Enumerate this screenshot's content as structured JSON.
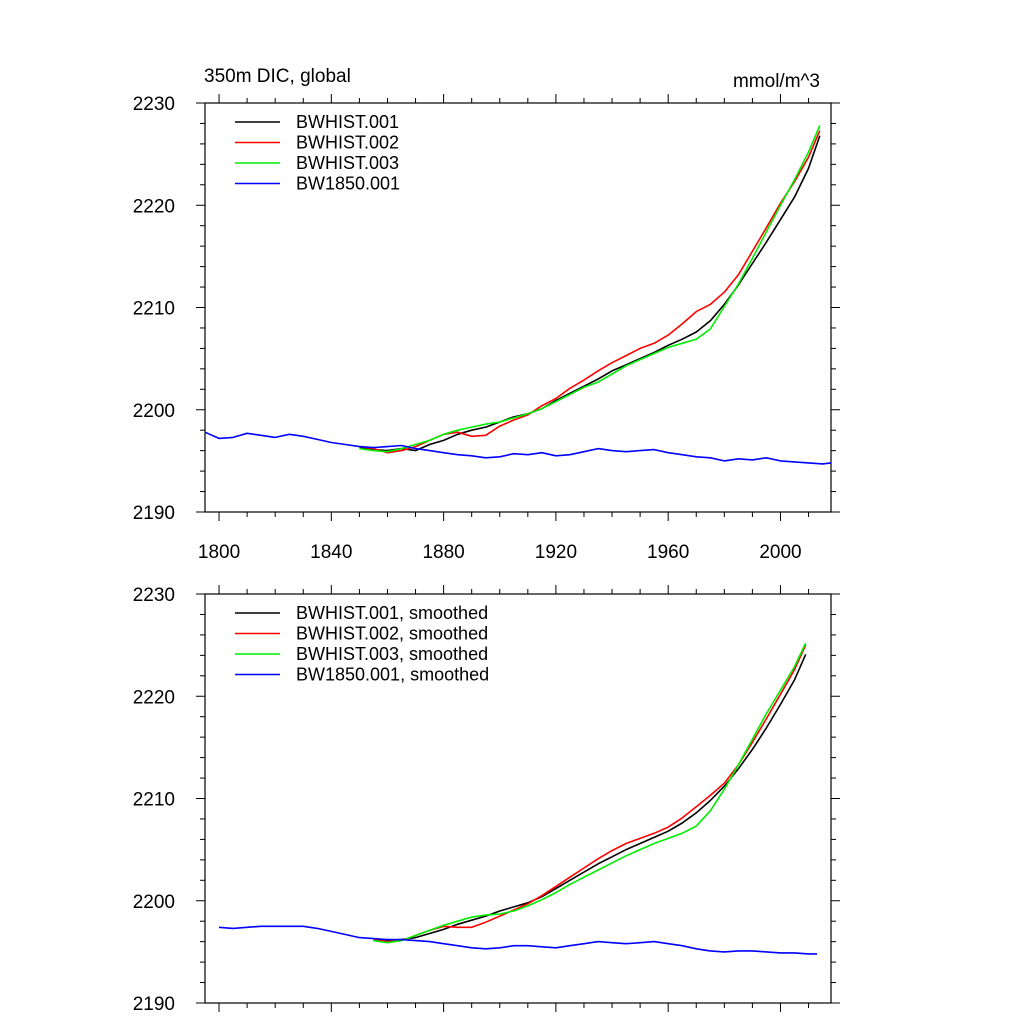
{
  "chart_data": [
    {
      "type": "line",
      "title": "350m DIC, global",
      "units": "mmol/m^3",
      "xlim": [
        1795,
        2018
      ],
      "ylim": [
        2190,
        2230
      ],
      "x_ticks": [
        1800,
        1840,
        1880,
        1920,
        1960,
        2000
      ],
      "y_ticks": [
        2190,
        2200,
        2210,
        2220,
        2230
      ],
      "show_x_tick_labels": true,
      "grid": false,
      "legend": "top-left",
      "series": [
        {
          "name": "BWHIST.001",
          "color": "#000000",
          "x": [
            1850,
            1855,
            1860,
            1865,
            1870,
            1875,
            1880,
            1885,
            1890,
            1895,
            1900,
            1905,
            1910,
            1915,
            1920,
            1925,
            1930,
            1935,
            1940,
            1945,
            1950,
            1955,
            1960,
            1965,
            1970,
            1975,
            1980,
            1985,
            1990,
            1995,
            2000,
            2005,
            2010,
            2014
          ],
          "y": [
            2196.3,
            2196.1,
            2196.0,
            2196.2,
            2196.0,
            2196.6,
            2197.0,
            2197.6,
            2198.0,
            2198.3,
            2198.8,
            2199.3,
            2199.6,
            2200.1,
            2200.9,
            2201.6,
            2202.3,
            2203.0,
            2203.8,
            2204.4,
            2205.0,
            2205.6,
            2206.3,
            2206.9,
            2207.6,
            2208.7,
            2210.3,
            2212.2,
            2214.3,
            2216.4,
            2218.6,
            2220.8,
            2223.6,
            2226.8
          ]
        },
        {
          "name": "BWHIST.002",
          "color": "#ff0000",
          "x": [
            1850,
            1855,
            1860,
            1865,
            1870,
            1875,
            1880,
            1885,
            1890,
            1895,
            1900,
            1905,
            1910,
            1915,
            1920,
            1925,
            1930,
            1935,
            1940,
            1945,
            1950,
            1955,
            1960,
            1965,
            1970,
            1975,
            1980,
            1985,
            1990,
            1995,
            2000,
            2005,
            2010,
            2014
          ],
          "y": [
            2196.4,
            2196.2,
            2195.8,
            2196.0,
            2196.4,
            2197.0,
            2197.6,
            2197.8,
            2197.4,
            2197.5,
            2198.4,
            2199.0,
            2199.5,
            2200.4,
            2201.1,
            2202.1,
            2202.9,
            2203.8,
            2204.6,
            2205.3,
            2206.0,
            2206.5,
            2207.3,
            2208.4,
            2209.6,
            2210.3,
            2211.5,
            2213.2,
            2215.5,
            2217.8,
            2220.2,
            2222.3,
            2224.7,
            2227.3
          ]
        },
        {
          "name": "BWHIST.003",
          "color": "#00ee00",
          "x": [
            1850,
            1855,
            1860,
            1865,
            1870,
            1875,
            1880,
            1885,
            1890,
            1895,
            1900,
            1905,
            1910,
            1915,
            1920,
            1925,
            1930,
            1935,
            1940,
            1945,
            1950,
            1955,
            1960,
            1965,
            1970,
            1975,
            1980,
            1985,
            1990,
            1995,
            2000,
            2005,
            2010,
            2014
          ],
          "y": [
            2196.2,
            2196.0,
            2195.9,
            2196.2,
            2196.6,
            2197.0,
            2197.6,
            2198.0,
            2198.3,
            2198.6,
            2198.8,
            2199.2,
            2199.6,
            2200.1,
            2200.8,
            2201.5,
            2202.2,
            2202.7,
            2203.5,
            2204.3,
            2204.9,
            2205.5,
            2206.1,
            2206.5,
            2206.9,
            2207.9,
            2210.1,
            2212.3,
            2214.8,
            2217.4,
            2220.0,
            2222.5,
            2225.2,
            2227.8
          ]
        },
        {
          "name": "BW1850.001",
          "color": "#0000ff",
          "x": [
            1795,
            1800,
            1805,
            1810,
            1815,
            1820,
            1825,
            1830,
            1835,
            1840,
            1845,
            1850,
            1855,
            1860,
            1865,
            1870,
            1875,
            1880,
            1885,
            1890,
            1895,
            1900,
            1905,
            1910,
            1915,
            1920,
            1925,
            1930,
            1935,
            1940,
            1945,
            1950,
            1955,
            1960,
            1965,
            1970,
            1975,
            1980,
            1985,
            1990,
            1995,
            2000,
            2005,
            2010,
            2015,
            2018
          ],
          "y": [
            2197.8,
            2197.2,
            2197.3,
            2197.7,
            2197.5,
            2197.3,
            2197.6,
            2197.4,
            2197.1,
            2196.8,
            2196.6,
            2196.4,
            2196.3,
            2196.4,
            2196.5,
            2196.2,
            2196.0,
            2195.8,
            2195.6,
            2195.5,
            2195.3,
            2195.4,
            2195.7,
            2195.6,
            2195.8,
            2195.5,
            2195.6,
            2195.9,
            2196.2,
            2196.0,
            2195.9,
            2196.0,
            2196.1,
            2195.8,
            2195.6,
            2195.4,
            2195.3,
            2195.0,
            2195.2,
            2195.1,
            2195.3,
            2195.0,
            2194.9,
            2194.8,
            2194.7,
            2194.8
          ]
        }
      ]
    },
    {
      "type": "line",
      "title": "",
      "units": "",
      "xlim": [
        1795,
        2018
      ],
      "ylim": [
        2190,
        2230
      ],
      "x_ticks": [
        1800,
        1840,
        1880,
        1920,
        1960,
        2000
      ],
      "y_ticks": [
        2190,
        2200,
        2210,
        2220,
        2230
      ],
      "show_x_tick_labels": false,
      "grid": false,
      "legend": "top-left",
      "series": [
        {
          "name": "BWHIST.001, smoothed",
          "color": "#000000",
          "x": [
            1855,
            1860,
            1865,
            1870,
            1875,
            1880,
            1885,
            1890,
            1895,
            1900,
            1905,
            1910,
            1915,
            1920,
            1925,
            1930,
            1935,
            1940,
            1945,
            1950,
            1955,
            1960,
            1965,
            1970,
            1975,
            1980,
            1985,
            1990,
            1995,
            2000,
            2005,
            2009
          ],
          "y": [
            2196.2,
            2196.1,
            2196.2,
            2196.4,
            2196.8,
            2197.2,
            2197.7,
            2198.1,
            2198.5,
            2199.0,
            2199.4,
            2199.8,
            2200.4,
            2201.2,
            2202.0,
            2202.8,
            2203.6,
            2204.3,
            2205.0,
            2205.6,
            2206.2,
            2206.8,
            2207.6,
            2208.6,
            2209.8,
            2211.2,
            2212.9,
            2214.8,
            2216.9,
            2219.2,
            2221.6,
            2224.1
          ]
        },
        {
          "name": "BWHIST.002, smoothed",
          "color": "#ff0000",
          "x": [
            1855,
            1860,
            1865,
            1870,
            1875,
            1880,
            1885,
            1890,
            1895,
            1900,
            1905,
            1910,
            1915,
            1920,
            1925,
            1930,
            1935,
            1940,
            1945,
            1950,
            1955,
            1960,
            1965,
            1970,
            1975,
            1980,
            1985,
            1990,
            1995,
            2000,
            2005,
            2009
          ],
          "y": [
            2196.2,
            2196.0,
            2196.1,
            2196.6,
            2197.1,
            2197.5,
            2197.4,
            2197.4,
            2197.9,
            2198.5,
            2199.1,
            2199.7,
            2200.5,
            2201.4,
            2202.3,
            2203.2,
            2204.1,
            2204.9,
            2205.6,
            2206.1,
            2206.6,
            2207.2,
            2208.1,
            2209.2,
            2210.3,
            2211.5,
            2213.3,
            2215.5,
            2217.8,
            2220.2,
            2222.6,
            2225.0
          ]
        },
        {
          "name": "BWHIST.003, smoothed",
          "color": "#00ee00",
          "x": [
            1855,
            1860,
            1865,
            1870,
            1875,
            1880,
            1885,
            1890,
            1895,
            1900,
            1905,
            1910,
            1915,
            1920,
            1925,
            1930,
            1935,
            1940,
            1945,
            1950,
            1955,
            1960,
            1965,
            1970,
            1975,
            1980,
            1985,
            1990,
            1995,
            2000,
            2005,
            2009
          ],
          "y": [
            2196.1,
            2195.9,
            2196.1,
            2196.6,
            2197.1,
            2197.6,
            2198.0,
            2198.4,
            2198.6,
            2198.7,
            2199.0,
            2199.5,
            2200.1,
            2200.8,
            2201.6,
            2202.3,
            2203.0,
            2203.7,
            2204.4,
            2205.0,
            2205.6,
            2206.1,
            2206.6,
            2207.3,
            2208.8,
            2210.9,
            2213.3,
            2215.8,
            2218.3,
            2220.6,
            2222.9,
            2225.2
          ]
        },
        {
          "name": "BW1850.001, smoothed",
          "color": "#0000ff",
          "x": [
            1800,
            1805,
            1810,
            1815,
            1820,
            1825,
            1830,
            1835,
            1840,
            1845,
            1850,
            1855,
            1860,
            1865,
            1870,
            1875,
            1880,
            1885,
            1890,
            1895,
            1900,
            1905,
            1910,
            1915,
            1920,
            1925,
            1930,
            1935,
            1940,
            1945,
            1950,
            1955,
            1960,
            1965,
            1970,
            1975,
            1980,
            1985,
            1990,
            1995,
            2000,
            2005,
            2010,
            2013
          ],
          "y": [
            2197.4,
            2197.3,
            2197.4,
            2197.5,
            2197.5,
            2197.5,
            2197.5,
            2197.3,
            2197.0,
            2196.7,
            2196.4,
            2196.3,
            2196.2,
            2196.2,
            2196.1,
            2196.0,
            2195.8,
            2195.6,
            2195.4,
            2195.3,
            2195.4,
            2195.6,
            2195.6,
            2195.5,
            2195.4,
            2195.6,
            2195.8,
            2196.0,
            2195.9,
            2195.8,
            2195.9,
            2196.0,
            2195.8,
            2195.6,
            2195.3,
            2195.1,
            2195.0,
            2195.1,
            2195.1,
            2195.0,
            2194.9,
            2194.9,
            2194.8,
            2194.8
          ]
        }
      ]
    }
  ]
}
